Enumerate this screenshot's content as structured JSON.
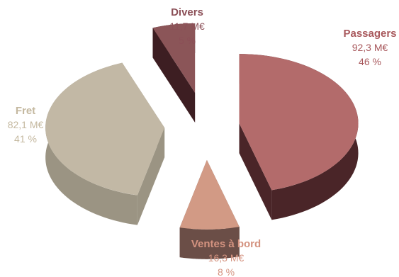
{
  "chart_data": {
    "type": "pie",
    "style": "3d-exploded",
    "title": "",
    "slices": [
      {
        "name": "Passagers",
        "value": 92.3,
        "value_label": "92,3 M€",
        "percent_label": "46 %",
        "percent": 46,
        "color": "#b36b6b",
        "side_color": "#4a2528",
        "label_color": "#a8585c"
      },
      {
        "name": "Ventes à bord",
        "value": 16.3,
        "value_label": "16,3 M€",
        "percent_label": "8 %",
        "percent": 8,
        "color": "#d29a85",
        "side_color": "#6b4e47",
        "label_color": "#d49380"
      },
      {
        "name": "Fret",
        "value": 82.1,
        "value_label": "82,1 M€",
        "percent_label": "41 %",
        "percent": 41,
        "color": "#c2b8a5",
        "side_color": "#9b9483",
        "label_color": "#c4b89f"
      },
      {
        "name": "Divers",
        "value": 11.7,
        "value_label": "11,7 M€",
        "percent_label": "5 %",
        "percent": 5,
        "color": "#8b5558",
        "side_color": "#3d1e22",
        "label_color": "#8b4f57"
      }
    ]
  }
}
